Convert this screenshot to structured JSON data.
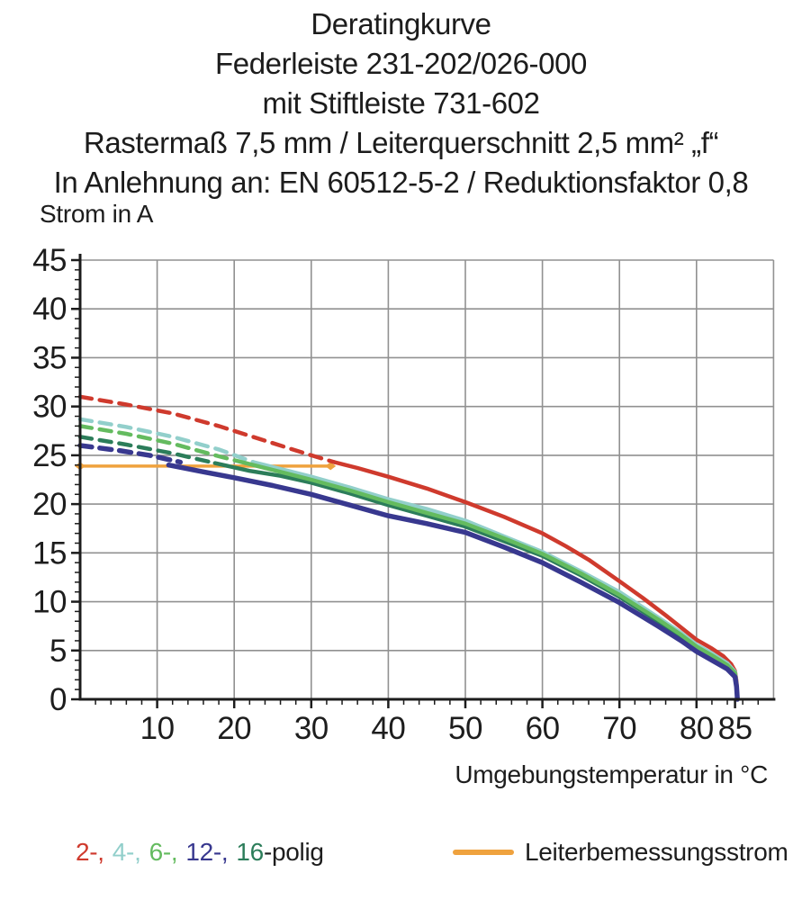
{
  "header": {
    "lines": [
      "Deratingkurve",
      "Federleiste 231-202/026-000",
      "mit Stiftleiste 731-602",
      "Rastermaß 7,5 mm / Leiterquerschnitt 2,5 mm² „f“",
      "In Anlehnung an: EN 60512-5-2 / Reduktionsfaktor 0,8"
    ]
  },
  "legend": {
    "poles": [
      {
        "id": "2",
        "text": "2-,",
        "color": "#cf3a2d"
      },
      {
        "id": "4",
        "text": "4-,",
        "color": "#92cfcb"
      },
      {
        "id": "6",
        "text": "6-,",
        "color": "#64bb5f"
      },
      {
        "id": "12",
        "text": "12-,",
        "color": "#38388f"
      },
      {
        "id": "16",
        "text": "16",
        "color": "#2c7d5a"
      }
    ],
    "poles_suffix": "-polig",
    "rated_current_label": "Leiterbemessungsstrom",
    "rated_current_color": "#efa23e"
  },
  "chart_data": {
    "type": "line",
    "title": "Deratingkurve",
    "xlabel": "Umgebungstemperatur in °C",
    "ylabel": "Strom in A",
    "xlim": [
      0,
      90
    ],
    "ylim": [
      0,
      45
    ],
    "x_ticks": [
      10,
      20,
      30,
      40,
      50,
      60,
      70,
      80,
      85
    ],
    "y_ticks": [
      0,
      5,
      10,
      15,
      20,
      25,
      30,
      35,
      40,
      45
    ],
    "x_gridlines": [
      10,
      20,
      30,
      40,
      50,
      60,
      70,
      80,
      90
    ],
    "y_gridlines": [
      5,
      10,
      15,
      20,
      25,
      30,
      35,
      40,
      45
    ],
    "x_minor_step": 2,
    "y_minor_step": 1,
    "grid": true,
    "grid_color": "#919191",
    "axis_color": "#1c1c1c",
    "rated_current": {
      "name": "Leiterbemessungsstrom",
      "color": "#efa23e",
      "value": 23.9,
      "x_range": [
        0,
        32.5
      ]
    },
    "series": [
      {
        "id": "2-polig",
        "name": "2-polig",
        "color": "#cf3a2d",
        "width": 4.5,
        "dashed_points": [
          [
            0,
            31
          ],
          [
            6,
            30.2
          ],
          [
            12,
            29.3
          ],
          [
            18,
            28.0
          ],
          [
            24,
            26.5
          ],
          [
            30,
            25.0
          ],
          [
            33,
            24.3
          ]
        ],
        "solid_points": [
          [
            33,
            24.3
          ],
          [
            36,
            23.7
          ],
          [
            40,
            22.8
          ],
          [
            45,
            21.6
          ],
          [
            50,
            20.2
          ],
          [
            55,
            18.7
          ],
          [
            60,
            17.0
          ],
          [
            63,
            15.7
          ],
          [
            66,
            14.3
          ],
          [
            70,
            12.1
          ],
          [
            73,
            10.4
          ],
          [
            76,
            8.6
          ],
          [
            80,
            6.1
          ],
          [
            82,
            5.2
          ],
          [
            83.5,
            4.4
          ],
          [
            84.5,
            3.6
          ],
          [
            85,
            2.9
          ],
          [
            85.2,
            1.8
          ],
          [
            85.3,
            0
          ]
        ]
      },
      {
        "id": "16-polig",
        "name": "16-polig",
        "color": "#2c7d5a",
        "width": 4.5,
        "dashed_points": [
          [
            0,
            26.9
          ],
          [
            6,
            26.1
          ],
          [
            12,
            25.2
          ],
          [
            17.5,
            24.2
          ]
        ],
        "solid_points": [
          [
            17.5,
            24.2
          ],
          [
            22,
            23.4
          ],
          [
            26,
            22.9
          ],
          [
            30,
            22.2
          ],
          [
            35,
            21.1
          ],
          [
            40,
            19.9
          ],
          [
            45,
            18.8
          ],
          [
            50,
            17.7
          ],
          [
            55,
            16.2
          ],
          [
            60,
            14.7
          ],
          [
            65,
            12.7
          ],
          [
            70,
            10.5
          ],
          [
            75,
            8.0
          ],
          [
            78,
            6.4
          ],
          [
            80,
            5.2
          ],
          [
            82,
            4.3
          ],
          [
            84,
            3.3
          ],
          [
            85,
            2.5
          ],
          [
            85.2,
            1.4
          ],
          [
            85.3,
            0
          ]
        ]
      },
      {
        "id": "4-polig",
        "name": "4-polig",
        "color": "#92cfcb",
        "width": 4.5,
        "dashed_points": [
          [
            0,
            28.7
          ],
          [
            6,
            27.9
          ],
          [
            12,
            26.9
          ],
          [
            18,
            25.6
          ],
          [
            22.5,
            24.3
          ]
        ],
        "solid_points": [
          [
            22.5,
            24.3
          ],
          [
            26,
            23.6
          ],
          [
            30,
            22.8
          ],
          [
            35,
            21.7
          ],
          [
            40,
            20.5
          ],
          [
            45,
            19.5
          ],
          [
            50,
            18.3
          ],
          [
            55,
            16.7
          ],
          [
            60,
            15.1
          ],
          [
            65,
            13.1
          ],
          [
            70,
            11.0
          ],
          [
            75,
            8.4
          ],
          [
            78,
            6.8
          ],
          [
            80,
            5.6
          ],
          [
            82,
            4.7
          ],
          [
            84,
            3.7
          ],
          [
            85,
            2.8
          ],
          [
            85.2,
            1.6
          ],
          [
            85.3,
            0
          ]
        ]
      },
      {
        "id": "6-polig",
        "name": "6-polig",
        "color": "#64bb5f",
        "width": 4.5,
        "dashed_points": [
          [
            0,
            28.0
          ],
          [
            6,
            27.2
          ],
          [
            12,
            26.2
          ],
          [
            18,
            24.9
          ],
          [
            21.5,
            24.2
          ]
        ],
        "solid_points": [
          [
            21.5,
            24.2
          ],
          [
            26,
            23.3
          ],
          [
            30,
            22.5
          ],
          [
            35,
            21.4
          ],
          [
            40,
            20.2
          ],
          [
            45,
            19.1
          ],
          [
            50,
            18.0
          ],
          [
            55,
            16.5
          ],
          [
            60,
            14.9
          ],
          [
            65,
            12.9
          ],
          [
            70,
            10.7
          ],
          [
            75,
            8.2
          ],
          [
            78,
            6.6
          ],
          [
            80,
            5.4
          ],
          [
            82,
            4.5
          ],
          [
            84,
            3.5
          ],
          [
            85,
            2.7
          ],
          [
            85.2,
            1.5
          ],
          [
            85.3,
            0
          ]
        ]
      },
      {
        "id": "12-polig",
        "name": "12-polig",
        "color": "#38388f",
        "width": 5.5,
        "dashed_points": [
          [
            0,
            26.0
          ],
          [
            5,
            25.5
          ],
          [
            9,
            25.0
          ],
          [
            13,
            24.3
          ]
        ],
        "solid_points": [
          [
            11.5,
            24.0
          ],
          [
            16,
            23.3
          ],
          [
            20,
            22.7
          ],
          [
            25,
            21.9
          ],
          [
            30,
            21.0
          ],
          [
            35,
            19.9
          ],
          [
            40,
            18.8
          ],
          [
            45,
            18.0
          ],
          [
            50,
            17.1
          ],
          [
            55,
            15.6
          ],
          [
            60,
            14.0
          ],
          [
            65,
            12.0
          ],
          [
            70,
            9.9
          ],
          [
            75,
            7.5
          ],
          [
            78,
            6.0
          ],
          [
            80,
            4.9
          ],
          [
            82,
            4.0
          ],
          [
            84,
            3.1
          ],
          [
            85,
            2.3
          ],
          [
            85.2,
            1.3
          ],
          [
            85.3,
            0
          ]
        ]
      }
    ]
  }
}
